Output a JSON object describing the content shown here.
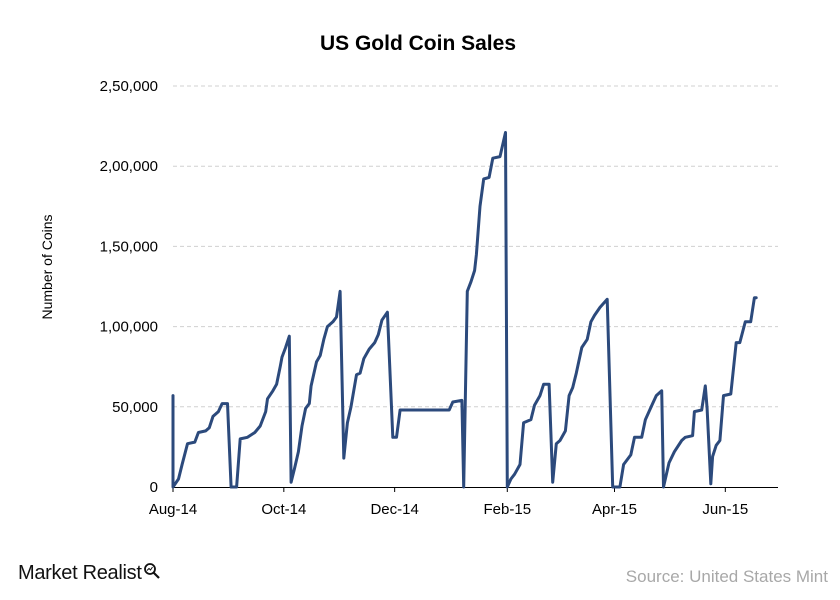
{
  "chart_data": {
    "type": "line",
    "title": "US Gold Coin Sales",
    "ylabel": "Number of Coins",
    "xlabel": "",
    "ylim": [
      0,
      250000
    ],
    "yticks": [
      0,
      50000,
      100000,
      150000,
      200000,
      250000
    ],
    "ytick_labels": [
      "0",
      "50,000",
      "1,00,000",
      "1,50,000",
      "2,00,000",
      "2,50,000"
    ],
    "xrange": [
      "2014-08-01",
      "2015-06-30"
    ],
    "xticks": [
      "2014-08-01",
      "2014-10-01",
      "2014-12-01",
      "2015-02-01",
      "2015-04-01",
      "2015-06-01"
    ],
    "xtick_labels": [
      "Aug-14",
      "Oct-14",
      "Dec-14",
      "Feb-15",
      "Apr-15",
      "Jun-15"
    ],
    "grid": "horizontal dashed",
    "line_color": "#2c4a7c",
    "series": [
      {
        "values": [
          [
            "2014-08-01",
            57000
          ],
          [
            "2014-08-01",
            0
          ],
          [
            "2014-08-04",
            5000
          ],
          [
            "2014-08-06",
            14000
          ],
          [
            "2014-08-09",
            27000
          ],
          [
            "2014-08-13",
            28000
          ],
          [
            "2014-08-15",
            34000
          ],
          [
            "2014-08-19",
            35000
          ],
          [
            "2014-08-21",
            37000
          ],
          [
            "2014-08-23",
            44000
          ],
          [
            "2014-08-26",
            47000
          ],
          [
            "2014-08-28",
            52000
          ],
          [
            "2014-08-31",
            52000
          ],
          [
            "2014-09-02",
            0
          ],
          [
            "2014-09-05",
            0
          ],
          [
            "2014-09-07",
            30000
          ],
          [
            "2014-09-11",
            31000
          ],
          [
            "2014-09-15",
            34000
          ],
          [
            "2014-09-18",
            38000
          ],
          [
            "2014-09-21",
            47000
          ],
          [
            "2014-09-22",
            55000
          ],
          [
            "2014-09-25",
            60000
          ],
          [
            "2014-09-27",
            64000
          ],
          [
            "2014-09-29",
            75000
          ],
          [
            "2014-09-30",
            81000
          ],
          [
            "2014-10-02",
            87000
          ],
          [
            "2014-10-04",
            94000
          ],
          [
            "2014-10-05",
            3000
          ],
          [
            "2014-10-07",
            12000
          ],
          [
            "2014-10-09",
            22000
          ],
          [
            "2014-10-11",
            38000
          ],
          [
            "2014-10-13",
            49000
          ],
          [
            "2014-10-15",
            52000
          ],
          [
            "2014-10-16",
            63000
          ],
          [
            "2014-10-19",
            78000
          ],
          [
            "2014-10-21",
            82000
          ],
          [
            "2014-10-23",
            92000
          ],
          [
            "2014-10-25",
            100000
          ],
          [
            "2014-10-28",
            103000
          ],
          [
            "2014-10-30",
            106000
          ],
          [
            "2014-11-01",
            122000
          ],
          [
            "2014-11-03",
            18000
          ],
          [
            "2014-11-05",
            40000
          ],
          [
            "2014-11-07",
            50000
          ],
          [
            "2014-11-10",
            70000
          ],
          [
            "2014-11-12",
            71000
          ],
          [
            "2014-11-14",
            80000
          ],
          [
            "2014-11-17",
            86000
          ],
          [
            "2014-11-20",
            90000
          ],
          [
            "2014-11-22",
            95000
          ],
          [
            "2014-11-24",
            104000
          ],
          [
            "2014-11-27",
            109000
          ],
          [
            "2014-11-30",
            31000
          ],
          [
            "2014-12-02",
            31000
          ],
          [
            "2014-12-04",
            48000
          ],
          [
            "2014-12-31",
            48000
          ],
          [
            "2015-01-02",
            53000
          ],
          [
            "2015-01-07",
            54000
          ],
          [
            "2015-01-08",
            0
          ],
          [
            "2015-01-10",
            122000
          ],
          [
            "2015-01-12",
            128000
          ],
          [
            "2015-01-14",
            135000
          ],
          [
            "2015-01-15",
            145000
          ],
          [
            "2015-01-17",
            175000
          ],
          [
            "2015-01-19",
            192000
          ],
          [
            "2015-01-22",
            193000
          ],
          [
            "2015-01-24",
            205000
          ],
          [
            "2015-01-28",
            206000
          ],
          [
            "2015-01-31",
            221000
          ],
          [
            "2015-02-01",
            0
          ],
          [
            "2015-02-03",
            5000
          ],
          [
            "2015-02-05",
            8000
          ],
          [
            "2015-02-08",
            14000
          ],
          [
            "2015-02-10",
            40000
          ],
          [
            "2015-02-14",
            42000
          ],
          [
            "2015-02-16",
            51000
          ],
          [
            "2015-02-19",
            57000
          ],
          [
            "2015-02-21",
            64000
          ],
          [
            "2015-02-24",
            64000
          ],
          [
            "2015-02-26",
            3000
          ],
          [
            "2015-02-28",
            27000
          ],
          [
            "2015-03-02",
            29000
          ],
          [
            "2015-03-05",
            35000
          ],
          [
            "2015-03-07",
            57000
          ],
          [
            "2015-03-09",
            62000
          ],
          [
            "2015-03-11",
            71000
          ],
          [
            "2015-03-14",
            87000
          ],
          [
            "2015-03-17",
            92000
          ],
          [
            "2015-03-19",
            103000
          ],
          [
            "2015-03-21",
            107000
          ],
          [
            "2015-03-24",
            112000
          ],
          [
            "2015-03-28",
            117000
          ],
          [
            "2015-03-31",
            0
          ],
          [
            "2015-04-04",
            0
          ],
          [
            "2015-04-06",
            14000
          ],
          [
            "2015-04-10",
            20000
          ],
          [
            "2015-04-12",
            31000
          ],
          [
            "2015-04-16",
            31000
          ],
          [
            "2015-04-18",
            42000
          ],
          [
            "2015-04-20",
            47000
          ],
          [
            "2015-04-22",
            52000
          ],
          [
            "2015-04-24",
            57000
          ],
          [
            "2015-04-27",
            60000
          ],
          [
            "2015-04-28",
            0
          ],
          [
            "2015-05-01",
            15000
          ],
          [
            "2015-05-04",
            22000
          ],
          [
            "2015-05-08",
            29000
          ],
          [
            "2015-05-10",
            31000
          ],
          [
            "2015-05-14",
            32000
          ],
          [
            "2015-05-15",
            47000
          ],
          [
            "2015-05-19",
            48000
          ],
          [
            "2015-05-21",
            63000
          ],
          [
            "2015-05-22",
            49000
          ],
          [
            "2015-05-24",
            2000
          ],
          [
            "2015-05-25",
            19000
          ],
          [
            "2015-05-27",
            26000
          ],
          [
            "2015-05-29",
            29000
          ],
          [
            "2015-05-31",
            57000
          ],
          [
            "2015-06-04",
            58000
          ],
          [
            "2015-06-07",
            90000
          ],
          [
            "2015-06-09",
            90000
          ],
          [
            "2015-06-12",
            103000
          ],
          [
            "2015-06-15",
            103000
          ],
          [
            "2015-06-17",
            118000
          ],
          [
            "2015-06-18",
            118000
          ]
        ]
      }
    ]
  },
  "footer": {
    "brand": "Market Realist",
    "source": "Source: United States Mint"
  }
}
